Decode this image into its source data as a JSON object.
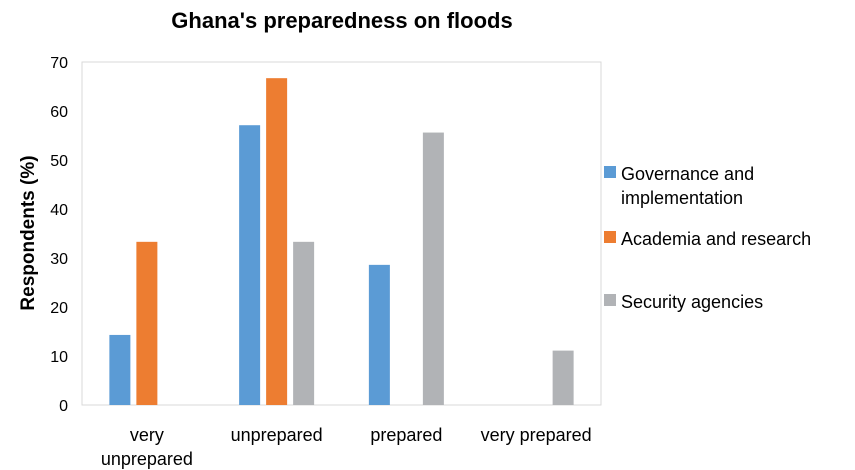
{
  "chart_data": {
    "type": "bar",
    "title": "Ghana's preparedness on floods",
    "xlabel": "",
    "ylabel": "Respondents (%)",
    "ylim": [
      0,
      70
    ],
    "yticks": [
      0,
      10,
      20,
      30,
      40,
      50,
      60,
      70
    ],
    "grid": false,
    "legend_position": "right",
    "categories": [
      [
        "very",
        "unprepared"
      ],
      [
        "unprepared"
      ],
      [
        "prepared"
      ],
      [
        "very prepared"
      ]
    ],
    "series": [
      {
        "name": [
          "Governance and",
          "implementation"
        ],
        "color": "#5b9bd5",
        "values": [
          14.3,
          57.1,
          28.6,
          0
        ]
      },
      {
        "name": [
          "Academia and research"
        ],
        "color": "#ed7d31",
        "values": [
          33.3,
          66.7,
          0,
          0
        ]
      },
      {
        "name": [
          "Security agencies"
        ],
        "color": "#b1b3b6",
        "values": [
          0,
          33.3,
          55.6,
          11.1
        ]
      }
    ]
  }
}
